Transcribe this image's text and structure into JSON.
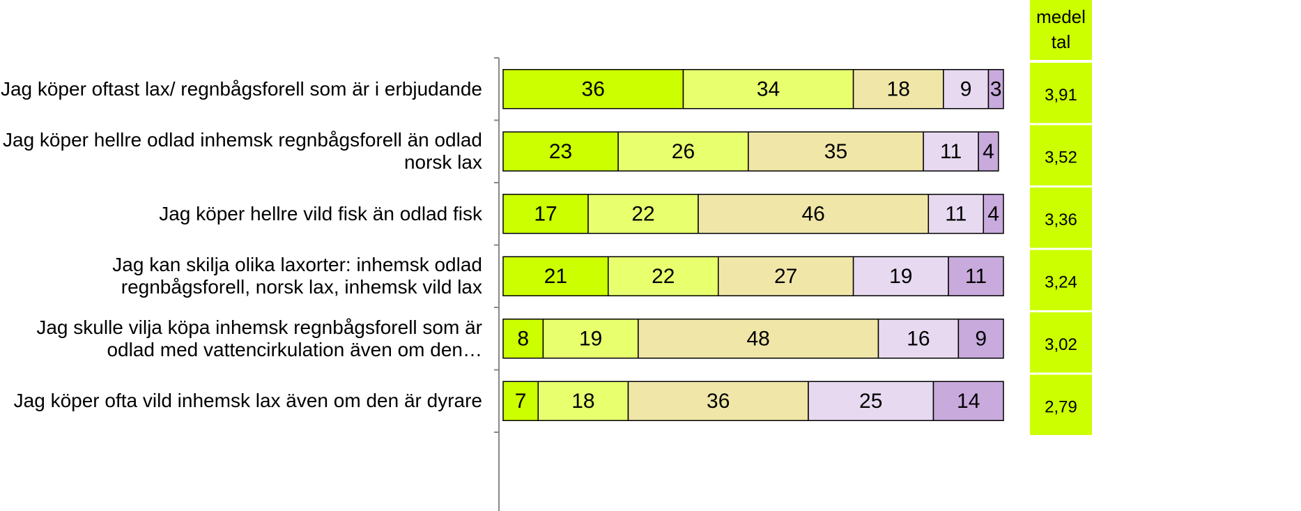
{
  "chart_data": {
    "type": "stacked-bar-horizontal",
    "categories": [
      "Jag köper oftast lax/ regnbågsforell som är i erbjudande",
      "Jag köper hellre odlad inhemsk regnbågsforell än odlad norsk lax",
      "Jag köper hellre vild fisk än odlad fisk",
      "Jag kan skilja olika laxorter: inhemsk odlad regnbågsforell, norsk lax, inhemsk vild lax",
      "Jag skulle vilja köpa inhemsk regnbågsforell som är odlad med vattencirkulation även om den…",
      "Jag köper ofta vild inhemsk lax även om den är dyrare"
    ],
    "series": [
      {
        "color": "#ccff00",
        "values": [
          36,
          23,
          17,
          21,
          8,
          7
        ]
      },
      {
        "color": "#e8ff6e",
        "values": [
          34,
          26,
          22,
          22,
          19,
          18
        ]
      },
      {
        "color": "#f0e6a8",
        "values": [
          18,
          35,
          46,
          27,
          48,
          36
        ]
      },
      {
        "color": "#e6d9f0",
        "values": [
          9,
          11,
          11,
          19,
          16,
          25
        ]
      },
      {
        "color": "#c8aadc",
        "values": [
          3,
          4,
          4,
          11,
          9,
          14
        ]
      }
    ],
    "xlim": [
      0,
      100
    ],
    "mean": {
      "header": [
        "medel",
        "tal"
      ],
      "color": "#ccff00",
      "values": [
        3.91,
        3.52,
        3.36,
        3.24,
        3.02,
        2.79
      ],
      "value_labels": [
        "3,91",
        "3,52",
        "3,36",
        "3,24",
        "3,02",
        "2,79"
      ]
    }
  }
}
